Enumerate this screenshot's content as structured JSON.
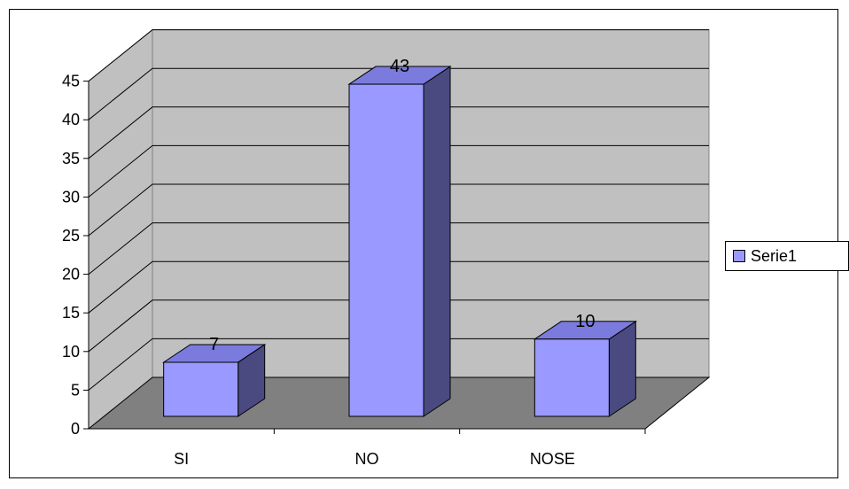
{
  "chart_data": {
    "type": "bar",
    "categories": [
      "SI",
      "NO",
      "NOSE"
    ],
    "series": [
      {
        "name": "Serie1",
        "values": [
          7,
          43,
          10
        ]
      }
    ],
    "ylim": [
      0,
      45
    ],
    "yticks": [
      0,
      5,
      10,
      15,
      20,
      25,
      30,
      35,
      40,
      45
    ],
    "data_labels": [
      "7",
      "43",
      "10"
    ],
    "grid": true,
    "legend": "right",
    "three_d": true
  },
  "colors": {
    "bar_front": "#9999ff",
    "bar_top": "#7b7bdd",
    "bar_side": "#4a4a80",
    "back_wall": "#c0c0c0",
    "side_wall": "#c0c0c0",
    "floor": "#808080"
  }
}
